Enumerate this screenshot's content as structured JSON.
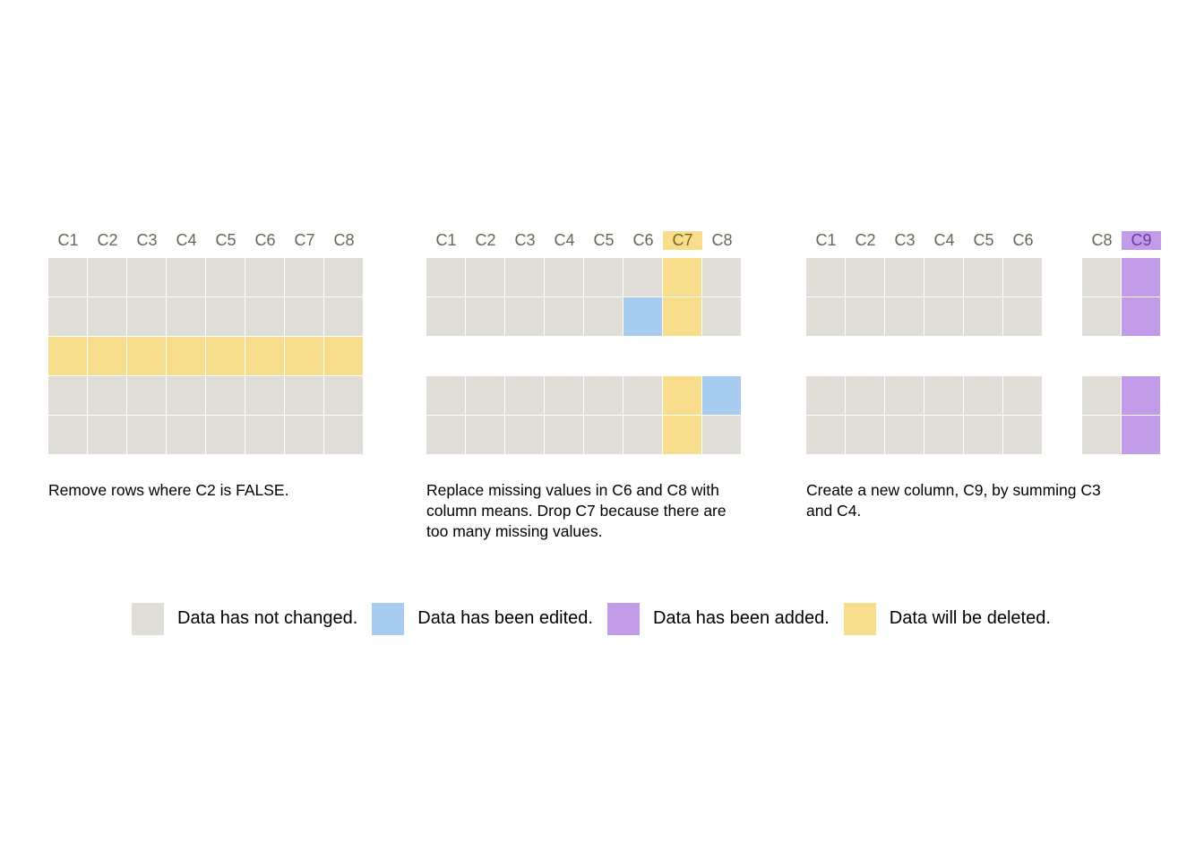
{
  "colors": {
    "unchanged": "#e0ddd7",
    "edited": "#a8cbf0",
    "added": "#c29ce8",
    "deleted": "#f8dd8c"
  },
  "panels": [
    {
      "id": "remove-rows",
      "columns": [
        "C1",
        "C2",
        "C3",
        "C4",
        "C5",
        "C6",
        "C7",
        "C8"
      ],
      "rows": [
        [
          "unchanged",
          "unchanged",
          "unchanged",
          "unchanged",
          "unchanged",
          "unchanged",
          "unchanged",
          "unchanged"
        ],
        [
          "unchanged",
          "unchanged",
          "unchanged",
          "unchanged",
          "unchanged",
          "unchanged",
          "unchanged",
          "unchanged"
        ],
        [
          "deleted",
          "deleted",
          "deleted",
          "deleted",
          "deleted",
          "deleted",
          "deleted",
          "deleted"
        ],
        [
          "unchanged",
          "unchanged",
          "unchanged",
          "unchanged",
          "unchanged",
          "unchanged",
          "unchanged",
          "unchanged"
        ],
        [
          "unchanged",
          "unchanged",
          "unchanged",
          "unchanged",
          "unchanged",
          "unchanged",
          "unchanged",
          "unchanged"
        ]
      ],
      "caption": "Remove rows where C2 is FALSE."
    },
    {
      "id": "replace-missing",
      "columns": [
        "C1",
        "C2",
        "C3",
        "C4",
        "C5",
        "C6",
        "C7",
        "C8"
      ],
      "rows": [
        [
          "unchanged",
          "unchanged",
          "unchanged",
          "unchanged",
          "unchanged",
          "unchanged",
          "deleted",
          "unchanged"
        ],
        [
          "unchanged",
          "unchanged",
          "unchanged",
          "unchanged",
          "unchanged",
          "edited",
          "deleted",
          "unchanged"
        ],
        null,
        [
          "unchanged",
          "unchanged",
          "unchanged",
          "unchanged",
          "unchanged",
          "unchanged",
          "deleted",
          "edited"
        ],
        [
          "unchanged",
          "unchanged",
          "unchanged",
          "unchanged",
          "unchanged",
          "unchanged",
          "deleted",
          "unchanged"
        ]
      ],
      "caption": "Replace missing values in C6 and C8 with column means. Drop C7 because there are too many missing values."
    },
    {
      "id": "add-column",
      "columns": [
        "C1",
        "C2",
        "C3",
        "C4",
        "C5",
        "C6",
        "",
        "C8",
        "C9"
      ],
      "rows": [
        [
          "unchanged",
          "unchanged",
          "unchanged",
          "unchanged",
          "unchanged",
          "unchanged",
          null,
          "unchanged",
          "added"
        ],
        [
          "unchanged",
          "unchanged",
          "unchanged",
          "unchanged",
          "unchanged",
          "unchanged",
          null,
          "unchanged",
          "added"
        ],
        null,
        [
          "unchanged",
          "unchanged",
          "unchanged",
          "unchanged",
          "unchanged",
          "unchanged",
          null,
          "unchanged",
          "added"
        ],
        [
          "unchanged",
          "unchanged",
          "unchanged",
          "unchanged",
          "unchanged",
          "unchanged",
          null,
          "unchanged",
          "added"
        ]
      ],
      "caption": "Create a new column, C9, by summing C3 and C4."
    }
  ],
  "legend": [
    {
      "key": "unchanged",
      "label": "Data has not changed."
    },
    {
      "key": "edited",
      "label": "Data has been edited."
    },
    {
      "key": "added",
      "label": "Data has been added."
    },
    {
      "key": "deleted",
      "label": "Data will be deleted."
    }
  ]
}
